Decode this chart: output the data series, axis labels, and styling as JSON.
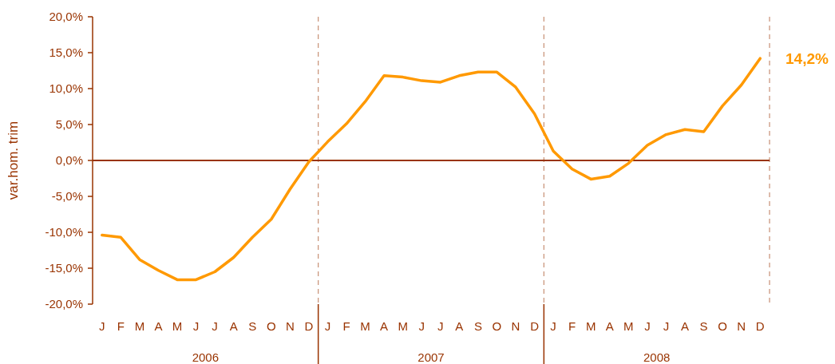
{
  "chart_data": {
    "type": "line",
    "ylabel": "var.hom. trim",
    "categories": [
      "J",
      "F",
      "M",
      "A",
      "M",
      "J",
      "J",
      "A",
      "S",
      "O",
      "N",
      "D",
      "J",
      "F",
      "M",
      "A",
      "M",
      "J",
      "J",
      "A",
      "S",
      "O",
      "N",
      "D",
      "J",
      "F",
      "M",
      "A",
      "M",
      "J",
      "J",
      "A",
      "S",
      "O",
      "N",
      "D"
    ],
    "series": [
      {
        "color": "#ff9900",
        "values": [
          -10.4,
          -10.7,
          -13.8,
          -15.3,
          -16.6,
          -16.6,
          -15.5,
          -13.5,
          -10.7,
          -8.2,
          -4.0,
          -0.2,
          2.6,
          5.1,
          8.2,
          11.8,
          11.6,
          11.1,
          10.9,
          11.8,
          12.3,
          12.3,
          10.2,
          6.5,
          1.3,
          -1.2,
          -2.6,
          -2.2,
          -0.4,
          2.1,
          3.6,
          4.3,
          4.0,
          7.6,
          10.5,
          14.2
        ],
        "value_labels": [
          null,
          null,
          null,
          null,
          null,
          null,
          null,
          null,
          null,
          null,
          null,
          null,
          null,
          null,
          null,
          null,
          null,
          null,
          null,
          null,
          null,
          null,
          null,
          null,
          null,
          null,
          null,
          null,
          null,
          null,
          null,
          null,
          null,
          null,
          null,
          "14,2%"
        ]
      }
    ],
    "annotations": [
      "2006",
      "2007",
      "2008"
    ],
    "ylim": [
      -20,
      20
    ],
    "yticks": [
      {
        "value": -20,
        "label": "-20,0%"
      },
      {
        "value": -15,
        "label": "-15,0%"
      },
      {
        "value": -10,
        "label": "-10,0%"
      },
      {
        "value": -5,
        "label": "-5,0%"
      },
      {
        "value": 0,
        "label": "0,0%"
      },
      {
        "value": 5,
        "label": "5,0%"
      },
      {
        "value": 10,
        "label": "10,0%"
      },
      {
        "value": 15,
        "label": "15,0%"
      },
      {
        "value": 20,
        "label": "20,0%"
      }
    ],
    "ref_lines": [
      {
        "axis": "y",
        "value": 0,
        "color": "#993300"
      }
    ],
    "marker": "none",
    "line_style": "solid"
  }
}
